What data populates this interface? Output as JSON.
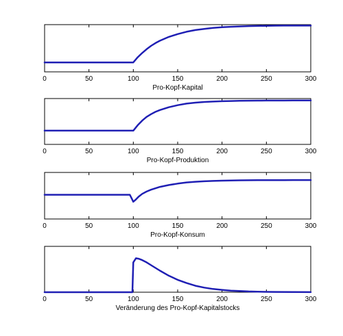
{
  "chart_data": [
    {
      "type": "line",
      "xlabel": "Pro-Kopf-Kapital",
      "xlim": [
        0,
        300
      ],
      "xticks": [
        0,
        50,
        100,
        150,
        200,
        250,
        300
      ],
      "ylim": [
        0,
        1
      ],
      "line_color": "#1f1fb4",
      "grid": false,
      "series": [
        {
          "x": [
            0,
            100,
            105,
            110,
            115,
            120,
            125,
            130,
            140,
            150,
            160,
            170,
            180,
            190,
            200,
            210,
            220,
            230,
            240,
            250,
            260,
            270,
            280,
            290,
            300
          ],
          "values": [
            0.2,
            0.2,
            0.31,
            0.4,
            0.48,
            0.55,
            0.61,
            0.66,
            0.74,
            0.8,
            0.85,
            0.885,
            0.91,
            0.93,
            0.945,
            0.955,
            0.963,
            0.969,
            0.973,
            0.976,
            0.978,
            0.979,
            0.98,
            0.98,
            0.98
          ]
        }
      ]
    },
    {
      "type": "line",
      "xlabel": "Pro-Kopf-Produktion",
      "xlim": [
        0,
        300
      ],
      "xticks": [
        0,
        50,
        100,
        150,
        200,
        250,
        300
      ],
      "ylim": [
        0,
        1
      ],
      "line_color": "#1f1fb4",
      "grid": false,
      "series": [
        {
          "x": [
            0,
            100,
            105,
            110,
            115,
            120,
            125,
            130,
            140,
            150,
            160,
            170,
            180,
            190,
            200,
            210,
            220,
            230,
            240,
            250,
            260,
            270,
            280,
            290,
            300
          ],
          "values": [
            0.3,
            0.3,
            0.42,
            0.52,
            0.6,
            0.66,
            0.71,
            0.75,
            0.81,
            0.855,
            0.89,
            0.91,
            0.925,
            0.935,
            0.942,
            0.947,
            0.951,
            0.953,
            0.955,
            0.956,
            0.957,
            0.957,
            0.958,
            0.958,
            0.958
          ]
        }
      ]
    },
    {
      "type": "line",
      "xlabel": "Pro-Kopf-Konsum",
      "xlim": [
        0,
        300
      ],
      "xticks": [
        0,
        50,
        100,
        150,
        200,
        250,
        300
      ],
      "ylim": [
        0,
        1
      ],
      "line_color": "#1f1fb4",
      "grid": false,
      "series": [
        {
          "x": [
            0,
            96,
            98,
            100,
            103,
            106,
            110,
            115,
            120,
            130,
            140,
            150,
            160,
            170,
            180,
            190,
            200,
            210,
            220,
            230,
            240,
            250,
            260,
            270,
            280,
            290,
            300
          ],
          "values": [
            0.52,
            0.52,
            0.45,
            0.37,
            0.42,
            0.48,
            0.54,
            0.59,
            0.63,
            0.69,
            0.73,
            0.76,
            0.785,
            0.8,
            0.81,
            0.818,
            0.824,
            0.828,
            0.831,
            0.833,
            0.834,
            0.835,
            0.836,
            0.836,
            0.837,
            0.837,
            0.837
          ]
        }
      ]
    },
    {
      "type": "line",
      "xlabel": "Veränderung des Pro-Kopf-Kapitalstocks",
      "xlim": [
        0,
        300
      ],
      "xticks": [
        0,
        50,
        100,
        150,
        200,
        250,
        300
      ],
      "ylim": [
        0,
        1
      ],
      "line_color": "#1f1fb4",
      "grid": false,
      "series": [
        {
          "x": [
            0,
            99,
            100,
            103,
            106,
            110,
            115,
            120,
            130,
            140,
            150,
            160,
            170,
            180,
            190,
            200,
            210,
            220,
            230,
            240,
            250,
            260,
            280,
            300
          ],
          "values": [
            0.0,
            0.0,
            0.65,
            0.74,
            0.73,
            0.7,
            0.65,
            0.59,
            0.47,
            0.36,
            0.27,
            0.2,
            0.14,
            0.1,
            0.07,
            0.05,
            0.035,
            0.025,
            0.017,
            0.012,
            0.008,
            0.006,
            0.003,
            0.002
          ]
        }
      ]
    }
  ]
}
